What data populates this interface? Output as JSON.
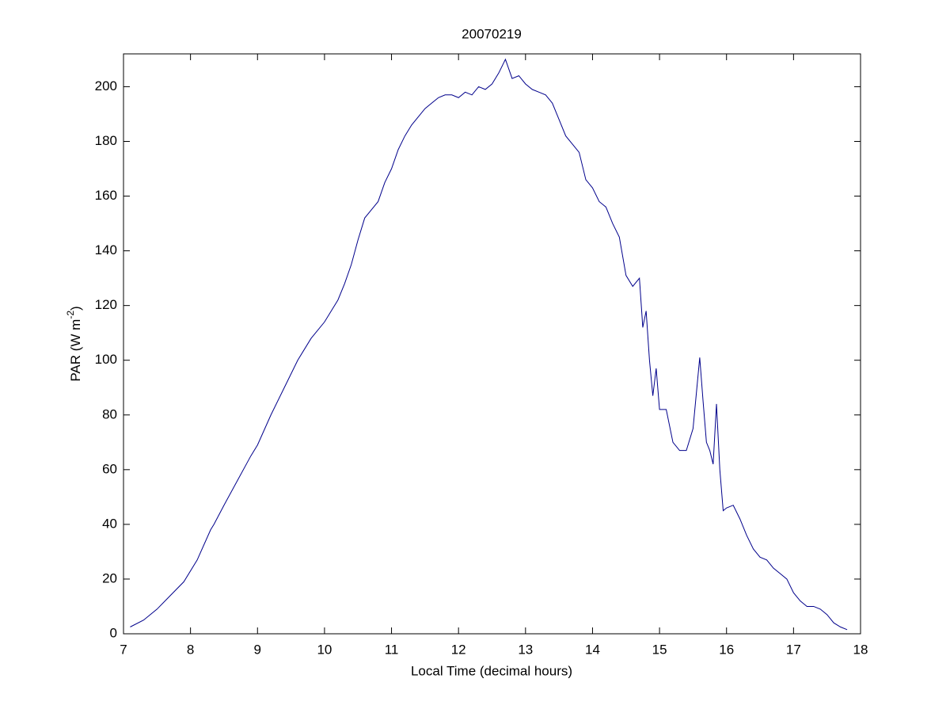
{
  "chart_data": {
    "type": "line",
    "title": "20070219",
    "xlabel": "Local Time (decimal hours)",
    "ylabel": [
      "PAR (W m",
      "-2",
      ")"
    ],
    "x": [
      7.1,
      7.3,
      7.5,
      7.7,
      7.9,
      8.1,
      8.3,
      8.35,
      8.5,
      8.7,
      8.9,
      9.0,
      9.2,
      9.4,
      9.6,
      9.8,
      10.0,
      10.2,
      10.3,
      10.4,
      10.5,
      10.6,
      10.7,
      10.8,
      10.9,
      11.0,
      11.1,
      11.2,
      11.3,
      11.4,
      11.5,
      11.6,
      11.7,
      11.8,
      11.9,
      12.0,
      12.1,
      12.2,
      12.3,
      12.4,
      12.5,
      12.6,
      12.7,
      12.8,
      12.9,
      13.0,
      13.1,
      13.2,
      13.3,
      13.4,
      13.5,
      13.6,
      13.7,
      13.8,
      13.9,
      14.0,
      14.1,
      14.2,
      14.3,
      14.4,
      14.5,
      14.6,
      14.7,
      14.75,
      14.8,
      14.85,
      14.9,
      14.95,
      15.0,
      15.1,
      15.2,
      15.3,
      15.4,
      15.5,
      15.55,
      15.6,
      15.65,
      15.7,
      15.75,
      15.8,
      15.85,
      15.9,
      15.95,
      16.0,
      16.1,
      16.2,
      16.3,
      16.4,
      16.5,
      16.6,
      16.7,
      16.8,
      16.9,
      17.0,
      17.1,
      17.2,
      17.3,
      17.4,
      17.5,
      17.6,
      17.7,
      17.8
    ],
    "values": [
      2.5,
      5,
      9,
      14,
      19,
      27,
      38,
      40,
      47,
      56,
      65,
      69,
      80,
      90,
      100,
      108,
      114,
      122,
      128,
      135,
      144,
      152,
      155,
      158,
      165,
      170,
      177,
      182,
      186,
      189,
      192,
      194,
      196,
      197,
      197,
      196,
      198,
      197,
      200,
      199,
      201,
      205,
      210,
      203,
      204,
      201,
      199,
      198,
      197,
      194,
      188,
      182,
      179,
      176,
      166,
      163,
      158,
      156,
      150,
      145,
      131,
      127,
      130,
      112,
      118,
      100,
      87,
      97,
      82,
      82,
      70,
      67,
      67,
      75,
      88,
      101,
      85,
      70,
      67,
      62,
      84,
      60,
      45,
      46,
      47,
      42,
      36,
      31,
      28,
      27,
      24,
      22,
      20,
      15,
      12,
      10,
      10,
      9,
      7,
      4,
      2.5,
      1.5
    ],
    "color": "#00008b",
    "xlim": [
      7,
      18
    ],
    "xticks": [
      7,
      8,
      9,
      10,
      11,
      12,
      13,
      14,
      15,
      16,
      17,
      18
    ],
    "ylim": [
      0,
      212
    ],
    "yticks": [
      0,
      20,
      40,
      60,
      80,
      100,
      120,
      140,
      160,
      180,
      200
    ],
    "grid": false
  }
}
